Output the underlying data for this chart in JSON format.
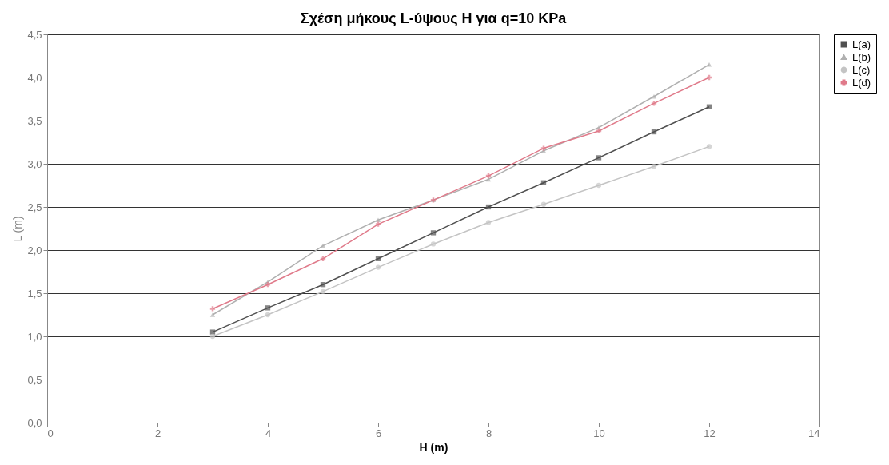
{
  "chart_data": {
    "type": "line",
    "title": "Σχέση μήκους L-ύψους H για q=10 KPa",
    "xlabel": "H (m)",
    "ylabel": "L (m)",
    "x": [
      3,
      4,
      5,
      6,
      7,
      8,
      9,
      10,
      11,
      12
    ],
    "series": [
      {
        "name": "L(a)",
        "color": "#505050",
        "marker": "square",
        "values": [
          1.05,
          1.33,
          1.6,
          1.9,
          2.2,
          2.5,
          2.78,
          3.07,
          3.37,
          3.66
        ]
      },
      {
        "name": "L(b)",
        "color": "#b0b0b0",
        "marker": "triangle",
        "values": [
          1.25,
          1.63,
          2.05,
          2.35,
          2.58,
          2.82,
          3.15,
          3.42,
          3.78,
          4.15
        ]
      },
      {
        "name": "L(c)",
        "color": "#c4c4c4",
        "marker": "circle",
        "values": [
          1.0,
          1.25,
          1.52,
          1.8,
          2.07,
          2.32,
          2.53,
          2.75,
          2.97,
          3.2
        ]
      },
      {
        "name": "L(d)",
        "color": "#e07a8a",
        "marker": "cross",
        "values": [
          1.32,
          1.6,
          1.9,
          2.3,
          2.58,
          2.86,
          3.18,
          3.38,
          3.7,
          4.0
        ]
      }
    ],
    "xlim": [
      0,
      14
    ],
    "xticks": [
      0,
      2,
      4,
      6,
      8,
      10,
      12,
      14
    ],
    "ylim": [
      0,
      4.5
    ],
    "yticks": [
      {
        "value": 0,
        "label": "0,0"
      },
      {
        "value": 0.5,
        "label": "0,5"
      },
      {
        "value": 1,
        "label": "1,0"
      },
      {
        "value": 1.5,
        "label": "1,5"
      },
      {
        "value": 2,
        "label": "2,0"
      },
      {
        "value": 2.5,
        "label": "2,5"
      },
      {
        "value": 3,
        "label": "3,0"
      },
      {
        "value": 3.5,
        "label": "3,5"
      },
      {
        "value": 4,
        "label": "4,0"
      },
      {
        "value": 4.5,
        "label": "4,5"
      }
    ],
    "grid": "y",
    "legend": "right"
  }
}
